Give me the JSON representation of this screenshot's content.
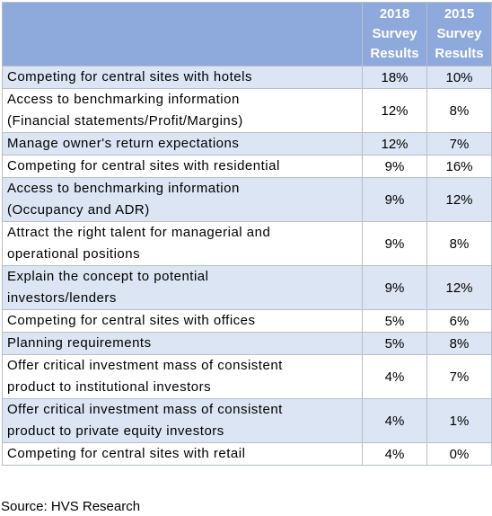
{
  "header": {
    "col_2018": [
      "2018",
      "Survey",
      "Results"
    ],
    "col_2015": [
      "2015",
      "Survey",
      "Results"
    ]
  },
  "rows": [
    {
      "label": [
        "Competing for central sites with hotels"
      ],
      "v2018": "18%",
      "v2015": "10%"
    },
    {
      "label": [
        "Access to benchmarking information",
        "(Financial statements/Profit/Margins)"
      ],
      "v2018": "12%",
      "v2015": "8%"
    },
    {
      "label": [
        "Manage owner's return expectations"
      ],
      "v2018": "12%",
      "v2015": "7%"
    },
    {
      "label": [
        "Competing for central sites with residential"
      ],
      "v2018": "9%",
      "v2015": "16%"
    },
    {
      "label": [
        "Access to benchmarking information",
        "(Occupancy and ADR)"
      ],
      "v2018": "9%",
      "v2015": "12%"
    },
    {
      "label": [
        "Attract the right talent for managerial and",
        "operational positions"
      ],
      "v2018": "9%",
      "v2015": "8%"
    },
    {
      "label": [
        "Explain the concept to potential",
        "investors/lenders"
      ],
      "v2018": "9%",
      "v2015": "12%"
    },
    {
      "label": [
        "Competing for central sites with offices"
      ],
      "v2018": "5%",
      "v2015": "6%"
    },
    {
      "label": [
        "Planning requirements"
      ],
      "v2018": "5%",
      "v2015": "8%"
    },
    {
      "label": [
        "Offer critical investment mass of consistent",
        "product to institutional investors"
      ],
      "v2018": "4%",
      "v2015": "7%"
    },
    {
      "label": [
        "Offer critical investment mass of consistent",
        "product to private equity investors"
      ],
      "v2018": "4%",
      "v2015": "1%"
    },
    {
      "label": [
        "Competing for central sites with retail"
      ],
      "v2018": "4%",
      "v2015": "0%"
    }
  ],
  "source": "Source: HVS Research",
  "colors": {
    "header_bg": "#8ea9db",
    "band_bg": "#dbe5f4",
    "border": "#b7bec9"
  }
}
